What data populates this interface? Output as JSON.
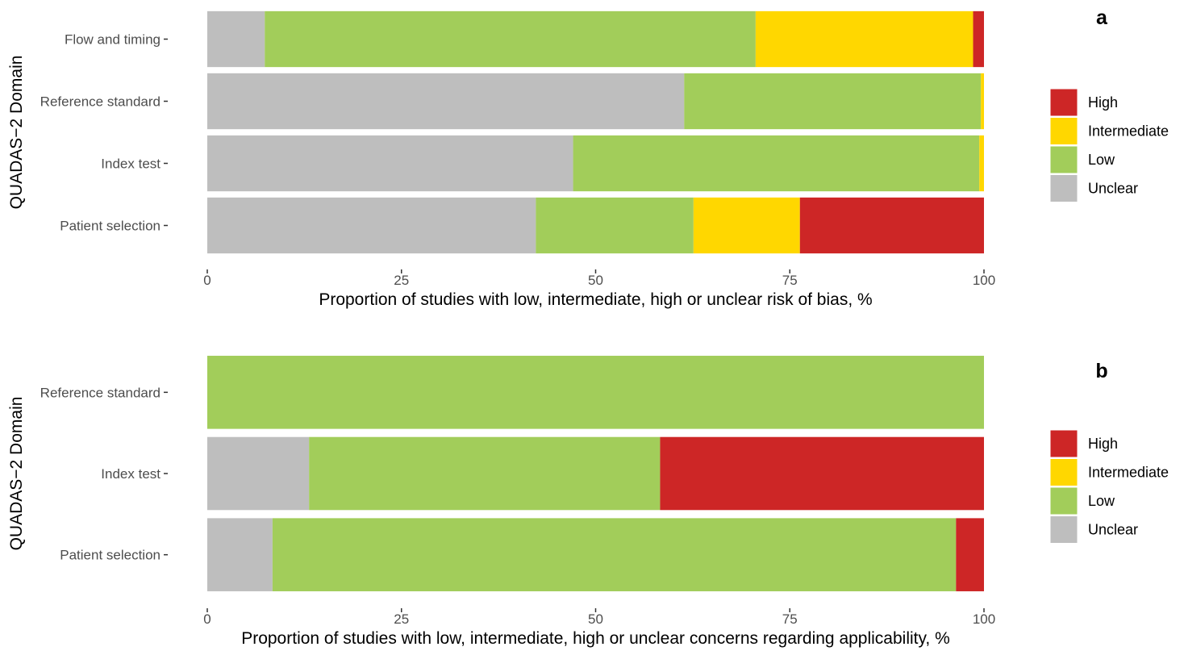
{
  "chart_data": [
    {
      "type": "bar",
      "orientation": "horizontal",
      "stacked": true,
      "panel_label": "a",
      "categories": [
        "Patient selection",
        "Index test",
        "Reference standard",
        "Flow and timing"
      ],
      "series": [
        {
          "name": "Unclear",
          "color": "#bebebe",
          "values": [
            42.3,
            47.1,
            61.4,
            7.4
          ]
        },
        {
          "name": "Low",
          "color": "#a2cd5a",
          "values": [
            20.3,
            52.3,
            38.2,
            63.2
          ]
        },
        {
          "name": "Intermediate",
          "color": "#ffd700",
          "values": [
            13.7,
            0.6,
            0.4,
            28.0
          ]
        },
        {
          "name": "High",
          "color": "#cd2626",
          "values": [
            23.7,
            0.0,
            0.0,
            1.4
          ]
        }
      ],
      "xlabel": "Proportion of studies with low, intermediate, high or unclear risk of bias, %",
      "ylabel": "QUADAS−2 Domain",
      "xlim": [
        0,
        100
      ],
      "xticks": [
        "0",
        "25",
        "50",
        "75",
        "100"
      ],
      "legend": {
        "placement": "right",
        "entries": [
          "High",
          "Intermediate",
          "Low",
          "Unclear"
        ]
      },
      "grid": false
    },
    {
      "type": "bar",
      "orientation": "horizontal",
      "stacked": true,
      "panel_label": "b",
      "categories": [
        "Patient selection",
        "Index test",
        "Reference standard"
      ],
      "series": [
        {
          "name": "Unclear",
          "color": "#bebebe",
          "values": [
            8.4,
            13.1,
            0.0
          ]
        },
        {
          "name": "Low",
          "color": "#a2cd5a",
          "values": [
            88.0,
            45.2,
            100.0
          ]
        },
        {
          "name": "Intermediate",
          "color": "#ffd700",
          "values": [
            0.0,
            0.0,
            0.0
          ]
        },
        {
          "name": "High",
          "color": "#cd2626",
          "values": [
            3.6,
            41.7,
            0.0
          ]
        }
      ],
      "xlabel": "Proportion of studies with low, intermediate, high or unclear concerns regarding applicability, %",
      "ylabel": "QUADAS−2 Domain",
      "xlim": [
        0,
        100
      ],
      "xticks": [
        "0",
        "25",
        "50",
        "75",
        "100"
      ],
      "legend": {
        "placement": "right",
        "entries": [
          "High",
          "Intermediate",
          "Low",
          "Unclear"
        ]
      },
      "grid": false
    }
  ]
}
